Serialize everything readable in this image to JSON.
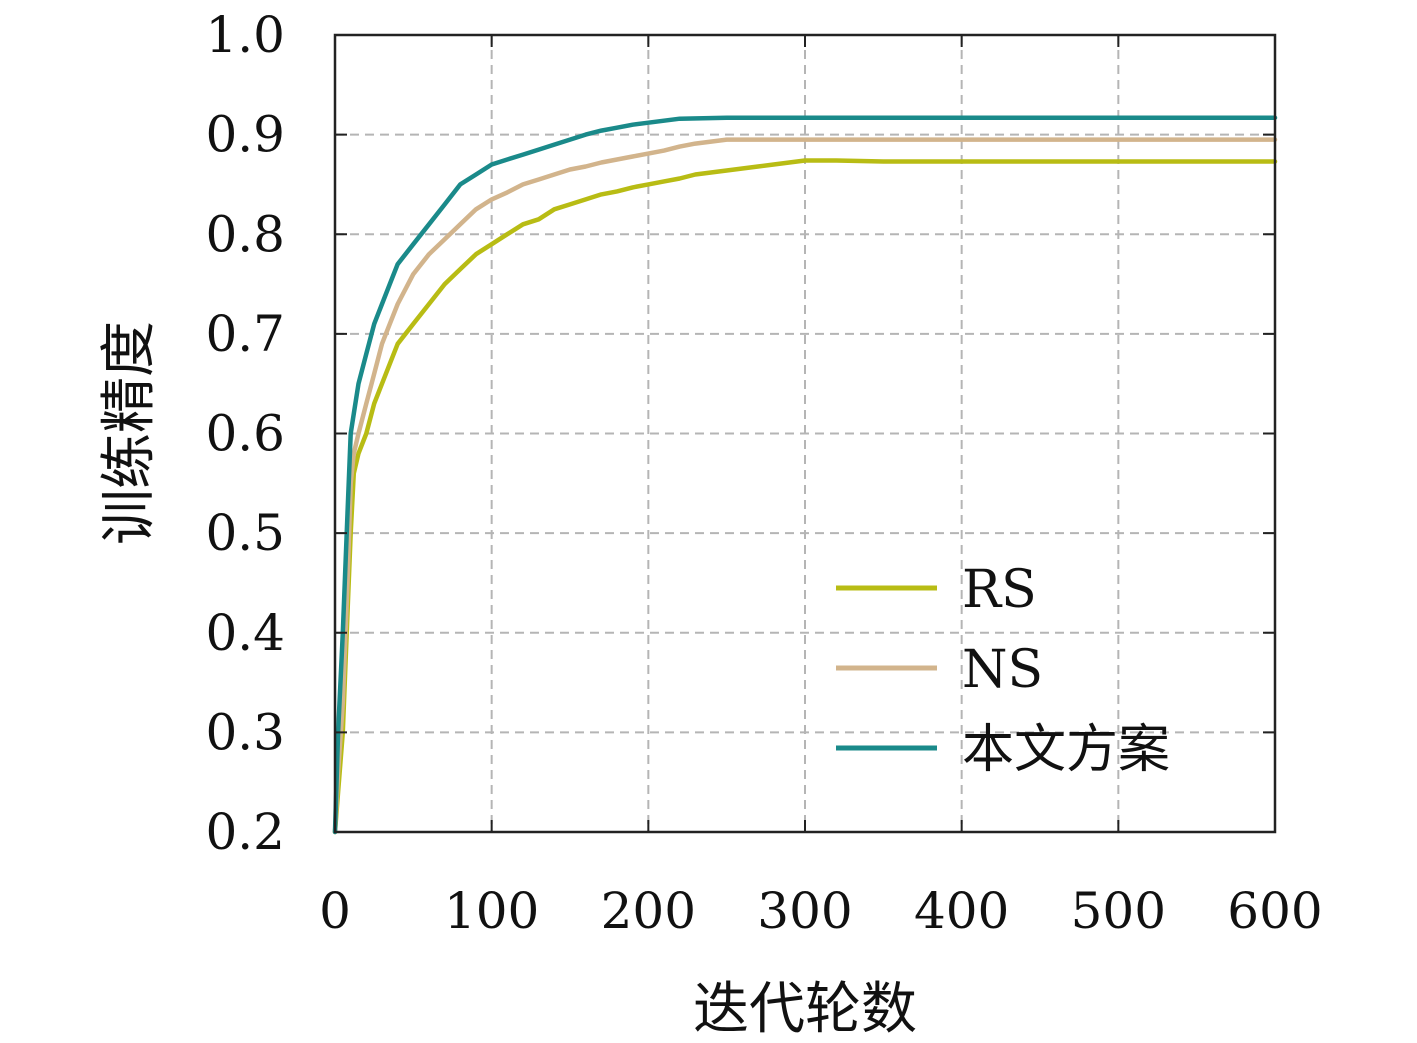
{
  "chart_data": {
    "type": "line",
    "title": "",
    "xlabel": "迭代轮数",
    "ylabel": "训练精度",
    "xlim": [
      0,
      600
    ],
    "ylim": [
      0.2,
      1.0
    ],
    "x_ticks": [
      "0",
      "100",
      "200",
      "300",
      "400",
      "500",
      "600"
    ],
    "y_ticks": [
      "0.2",
      "0.3",
      "0.4",
      "0.5",
      "0.6",
      "0.7",
      "0.8",
      "0.9",
      "1.0"
    ],
    "grid": true,
    "legend_position": "lower-right",
    "series": [
      {
        "name": "RS",
        "color": "#b8bc14",
        "x": [
          0,
          2,
          5,
          8,
          10,
          12,
          15,
          20,
          25,
          30,
          35,
          40,
          50,
          60,
          70,
          80,
          90,
          100,
          110,
          120,
          130,
          140,
          150,
          160,
          170,
          180,
          190,
          200,
          210,
          220,
          230,
          240,
          250,
          260,
          270,
          280,
          290,
          300,
          320,
          350,
          400,
          450,
          500,
          550,
          600
        ],
        "y": [
          0.2,
          0.24,
          0.3,
          0.42,
          0.5,
          0.56,
          0.58,
          0.6,
          0.63,
          0.65,
          0.67,
          0.69,
          0.71,
          0.73,
          0.75,
          0.765,
          0.78,
          0.79,
          0.8,
          0.81,
          0.815,
          0.825,
          0.83,
          0.835,
          0.84,
          0.843,
          0.847,
          0.85,
          0.853,
          0.856,
          0.86,
          0.862,
          0.864,
          0.866,
          0.868,
          0.87,
          0.872,
          0.874,
          0.874,
          0.873,
          0.873,
          0.873,
          0.873,
          0.873,
          0.873
        ]
      },
      {
        "name": "NS",
        "color": "#d2b48c",
        "x": [
          0,
          2,
          5,
          8,
          10,
          12,
          15,
          20,
          25,
          30,
          35,
          40,
          50,
          60,
          70,
          80,
          90,
          100,
          110,
          120,
          130,
          140,
          150,
          160,
          170,
          180,
          190,
          200,
          210,
          220,
          230,
          240,
          250,
          300,
          350,
          400,
          450,
          500,
          550,
          600
        ],
        "y": [
          0.2,
          0.26,
          0.33,
          0.45,
          0.55,
          0.58,
          0.6,
          0.63,
          0.66,
          0.69,
          0.71,
          0.73,
          0.76,
          0.78,
          0.795,
          0.81,
          0.825,
          0.835,
          0.842,
          0.85,
          0.855,
          0.86,
          0.865,
          0.868,
          0.872,
          0.875,
          0.878,
          0.881,
          0.884,
          0.888,
          0.891,
          0.893,
          0.895,
          0.895,
          0.895,
          0.895,
          0.895,
          0.895,
          0.895,
          0.895
        ]
      },
      {
        "name": "本文方案",
        "color": "#1a8a8a",
        "x": [
          0,
          2,
          5,
          8,
          10,
          12,
          15,
          20,
          25,
          30,
          35,
          40,
          50,
          60,
          70,
          80,
          90,
          100,
          110,
          120,
          130,
          140,
          150,
          160,
          170,
          180,
          190,
          200,
          210,
          220,
          250,
          300,
          350,
          400,
          450,
          500,
          550,
          600
        ],
        "y": [
          0.2,
          0.3,
          0.4,
          0.52,
          0.6,
          0.62,
          0.65,
          0.68,
          0.71,
          0.73,
          0.75,
          0.77,
          0.79,
          0.81,
          0.83,
          0.85,
          0.86,
          0.87,
          0.875,
          0.88,
          0.885,
          0.89,
          0.895,
          0.9,
          0.904,
          0.907,
          0.91,
          0.912,
          0.914,
          0.916,
          0.917,
          0.917,
          0.917,
          0.917,
          0.917,
          0.917,
          0.917,
          0.917
        ]
      }
    ]
  }
}
